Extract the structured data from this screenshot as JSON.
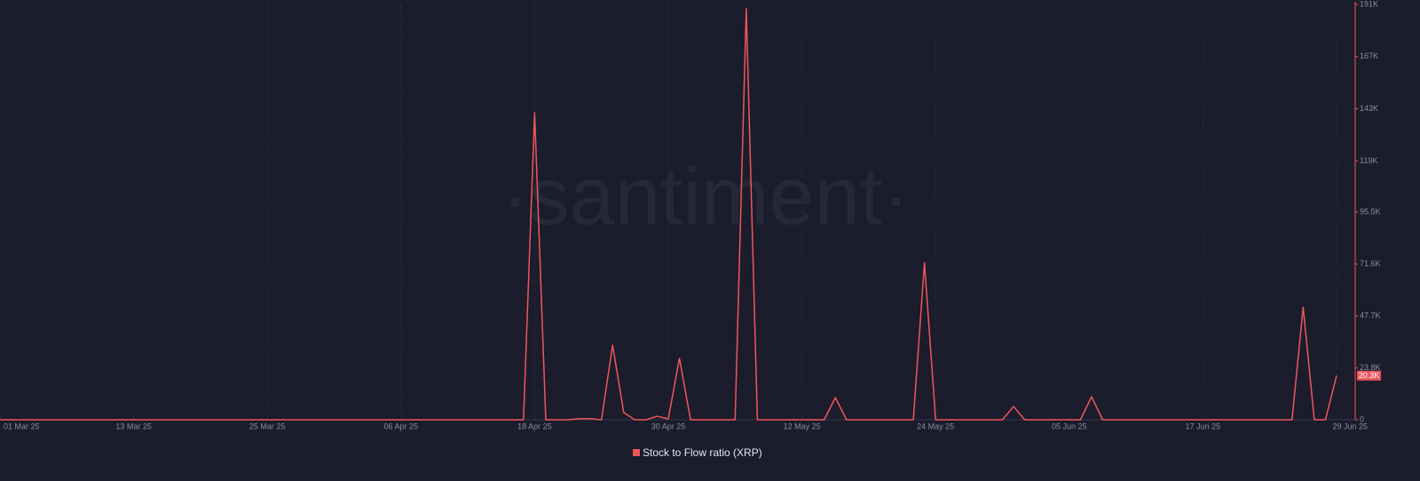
{
  "chart_data": {
    "type": "line",
    "watermark": "·santiment·",
    "x": [
      "2025-03-01",
      "2025-03-02",
      "2025-03-03",
      "2025-03-04",
      "2025-03-05",
      "2025-03-06",
      "2025-03-07",
      "2025-03-08",
      "2025-03-09",
      "2025-03-10",
      "2025-03-11",
      "2025-03-12",
      "2025-03-13",
      "2025-03-14",
      "2025-03-15",
      "2025-03-16",
      "2025-03-17",
      "2025-03-18",
      "2025-03-19",
      "2025-03-20",
      "2025-03-21",
      "2025-03-22",
      "2025-03-23",
      "2025-03-24",
      "2025-03-25",
      "2025-03-26",
      "2025-03-27",
      "2025-03-28",
      "2025-03-29",
      "2025-03-30",
      "2025-03-31",
      "2025-04-01",
      "2025-04-02",
      "2025-04-03",
      "2025-04-04",
      "2025-04-05",
      "2025-04-06",
      "2025-04-07",
      "2025-04-08",
      "2025-04-09",
      "2025-04-10",
      "2025-04-11",
      "2025-04-12",
      "2025-04-13",
      "2025-04-14",
      "2025-04-15",
      "2025-04-16",
      "2025-04-17",
      "2025-04-18",
      "2025-04-19",
      "2025-04-20",
      "2025-04-21",
      "2025-04-22",
      "2025-04-23",
      "2025-04-24",
      "2025-04-25",
      "2025-04-26",
      "2025-04-27",
      "2025-04-28",
      "2025-04-29",
      "2025-04-30",
      "2025-05-01",
      "2025-05-02",
      "2025-05-03",
      "2025-05-04",
      "2025-05-05",
      "2025-05-06",
      "2025-05-07",
      "2025-05-08",
      "2025-05-09",
      "2025-05-10",
      "2025-05-11",
      "2025-05-12",
      "2025-05-13",
      "2025-05-14",
      "2025-05-15",
      "2025-05-16",
      "2025-05-17",
      "2025-05-18",
      "2025-05-19",
      "2025-05-20",
      "2025-05-21",
      "2025-05-22",
      "2025-05-23",
      "2025-05-24",
      "2025-05-25",
      "2025-05-26",
      "2025-05-27",
      "2025-05-28",
      "2025-05-29",
      "2025-05-30",
      "2025-05-31",
      "2025-06-01",
      "2025-06-02",
      "2025-06-03",
      "2025-06-04",
      "2025-06-05",
      "2025-06-06",
      "2025-06-07",
      "2025-06-08",
      "2025-06-09",
      "2025-06-10",
      "2025-06-11",
      "2025-06-12",
      "2025-06-13",
      "2025-06-14",
      "2025-06-15",
      "2025-06-16",
      "2025-06-17",
      "2025-06-18",
      "2025-06-19",
      "2025-06-20",
      "2025-06-21",
      "2025-06-22",
      "2025-06-23",
      "2025-06-24",
      "2025-06-25",
      "2025-06-26",
      "2025-06-27",
      "2025-06-28",
      "2025-06-29"
    ],
    "series": [
      {
        "name": "Stock to Flow ratio (XRP)",
        "color": "#f0565c",
        "values": [
          0,
          0,
          0,
          0,
          0,
          0,
          0,
          0,
          0,
          0,
          0,
          0,
          0,
          0,
          0,
          0,
          0,
          0,
          0,
          0,
          0,
          0,
          0,
          0,
          0,
          0,
          0,
          0,
          0,
          0,
          0,
          0,
          0,
          0,
          0,
          0,
          0,
          0,
          0,
          0,
          0,
          0,
          0,
          0,
          0,
          0,
          0,
          0,
          141200,
          0,
          0,
          0,
          500,
          500,
          0,
          34300,
          3300,
          0,
          0,
          1600,
          400,
          28200,
          0,
          0,
          0,
          0,
          0,
          189000,
          0,
          0,
          0,
          0,
          0,
          0,
          0,
          10200,
          0,
          0,
          0,
          0,
          0,
          0,
          0,
          72200,
          0,
          0,
          0,
          0,
          0,
          0,
          0,
          6100,
          0,
          0,
          0,
          0,
          0,
          0,
          10600,
          0,
          0,
          0,
          0,
          0,
          0,
          0,
          0,
          0,
          0,
          0,
          0,
          0,
          0,
          0,
          0,
          0,
          0,
          51800,
          0,
          0,
          20300
        ],
        "value_labels": [
          null,
          null,
          null,
          null,
          null,
          null,
          null,
          null,
          null,
          null,
          null,
          null,
          null,
          null,
          null,
          null,
          null,
          null,
          null,
          null,
          null,
          null,
          null,
          null,
          null,
          null,
          null,
          null,
          null,
          null,
          null,
          null,
          null,
          null,
          null,
          null,
          null,
          null,
          null,
          null,
          null,
          null,
          null,
          null,
          null,
          null,
          null,
          null,
          null,
          null,
          null,
          null,
          null,
          null,
          null,
          null,
          null,
          null,
          null,
          null,
          null,
          null,
          null,
          null,
          null,
          null,
          null,
          null,
          null,
          null,
          null,
          null,
          null,
          null,
          null,
          null,
          null,
          null,
          null,
          null,
          null,
          null,
          null,
          null,
          null,
          null,
          null,
          null,
          null,
          null,
          null,
          null,
          null,
          null,
          null,
          null,
          null,
          null,
          null,
          null,
          null,
          null,
          null,
          null,
          null,
          null,
          null,
          null,
          null,
          null,
          null,
          null,
          null,
          null,
          null,
          null,
          null,
          null,
          null,
          null,
          "20.3K"
        ]
      }
    ],
    "xlim": [
      "2025-03-01",
      "2025-06-29"
    ],
    "xticks": [
      {
        "value": "2025-03-01",
        "label": "01 Mar 25"
      },
      {
        "value": "2025-03-13",
        "label": "13 Mar 25"
      },
      {
        "value": "2025-03-25",
        "label": "25 Mar 25"
      },
      {
        "value": "2025-04-06",
        "label": "06 Apr 25"
      },
      {
        "value": "2025-04-18",
        "label": "18 Apr 25"
      },
      {
        "value": "2025-04-30",
        "label": "30 Apr 25"
      },
      {
        "value": "2025-05-12",
        "label": "12 May 25"
      },
      {
        "value": "2025-05-24",
        "label": "24 May 25"
      },
      {
        "value": "2025-06-05",
        "label": "05 Jun 25"
      },
      {
        "value": "2025-06-17",
        "label": "17 Jun 25"
      },
      {
        "value": "2025-06-29",
        "label": "29 Jun 25"
      }
    ],
    "ylim": [
      0,
      191000
    ],
    "yticks": [
      0,
      {
        "value": 23800,
        "label": "23.8K"
      },
      {
        "value": 47700,
        "label": "47.7K"
      },
      {
        "value": 71600,
        "label": "71.6K"
      },
      {
        "value": 95500,
        "label": "95.5K"
      },
      {
        "value": 119000,
        "label": "119K"
      },
      {
        "value": 143000,
        "label": "143K"
      },
      {
        "value": 167000,
        "label": "167K"
      },
      {
        "value": 191000,
        "label": "191K"
      }
    ],
    "grid": "x",
    "legend": "bottom"
  }
}
